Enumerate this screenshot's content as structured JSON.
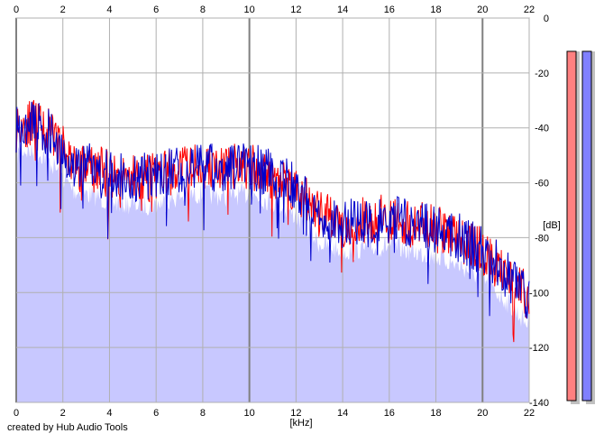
{
  "chart_data": {
    "type": "line",
    "xlabel": "[kHz]",
    "ylabel": "[dB]",
    "xlim": [
      0,
      22
    ],
    "ylim": [
      -140,
      0
    ],
    "x_ticks": [
      "0",
      "2",
      "4",
      "6",
      "8",
      "10",
      "12",
      "14",
      "16",
      "18",
      "20",
      "22"
    ],
    "y_ticks": [
      "0",
      "-20",
      "-40",
      "-60",
      "-80",
      "-100",
      "-120",
      "-140"
    ],
    "grid": true,
    "envelope": {
      "x": [
        0,
        0.3,
        0.8,
        1.2,
        1.6,
        2.0,
        2.5,
        3.0,
        3.5,
        4.0,
        5.0,
        6.0,
        7.0,
        8.0,
        9.0,
        10.0,
        11.0,
        12.0,
        13.0,
        14.0,
        15.0,
        16.0,
        17.0,
        18.0,
        19.0,
        20.0,
        21.0,
        22.0
      ],
      "values": [
        -40,
        -38,
        -39,
        -40,
        -44,
        -48,
        -53,
        -54,
        -55,
        -57,
        -58,
        -58,
        -55,
        -54,
        -55,
        -54,
        -57,
        -62,
        -72,
        -75,
        -74,
        -73,
        -75,
        -77,
        -80,
        -85,
        -93,
        -102
      ]
    },
    "series": [
      {
        "color": "#ff0000",
        "seed": 11
      },
      {
        "color": "#0000cc",
        "seed": 29
      }
    ],
    "fill_color": "#c8c8ff",
    "meter": [
      {
        "color": "#ff8080",
        "level": 0.99
      },
      {
        "color": "#8080ff",
        "level": 0.99
      }
    ]
  },
  "footer": {
    "credit": "created by Hub Audio Tools"
  }
}
